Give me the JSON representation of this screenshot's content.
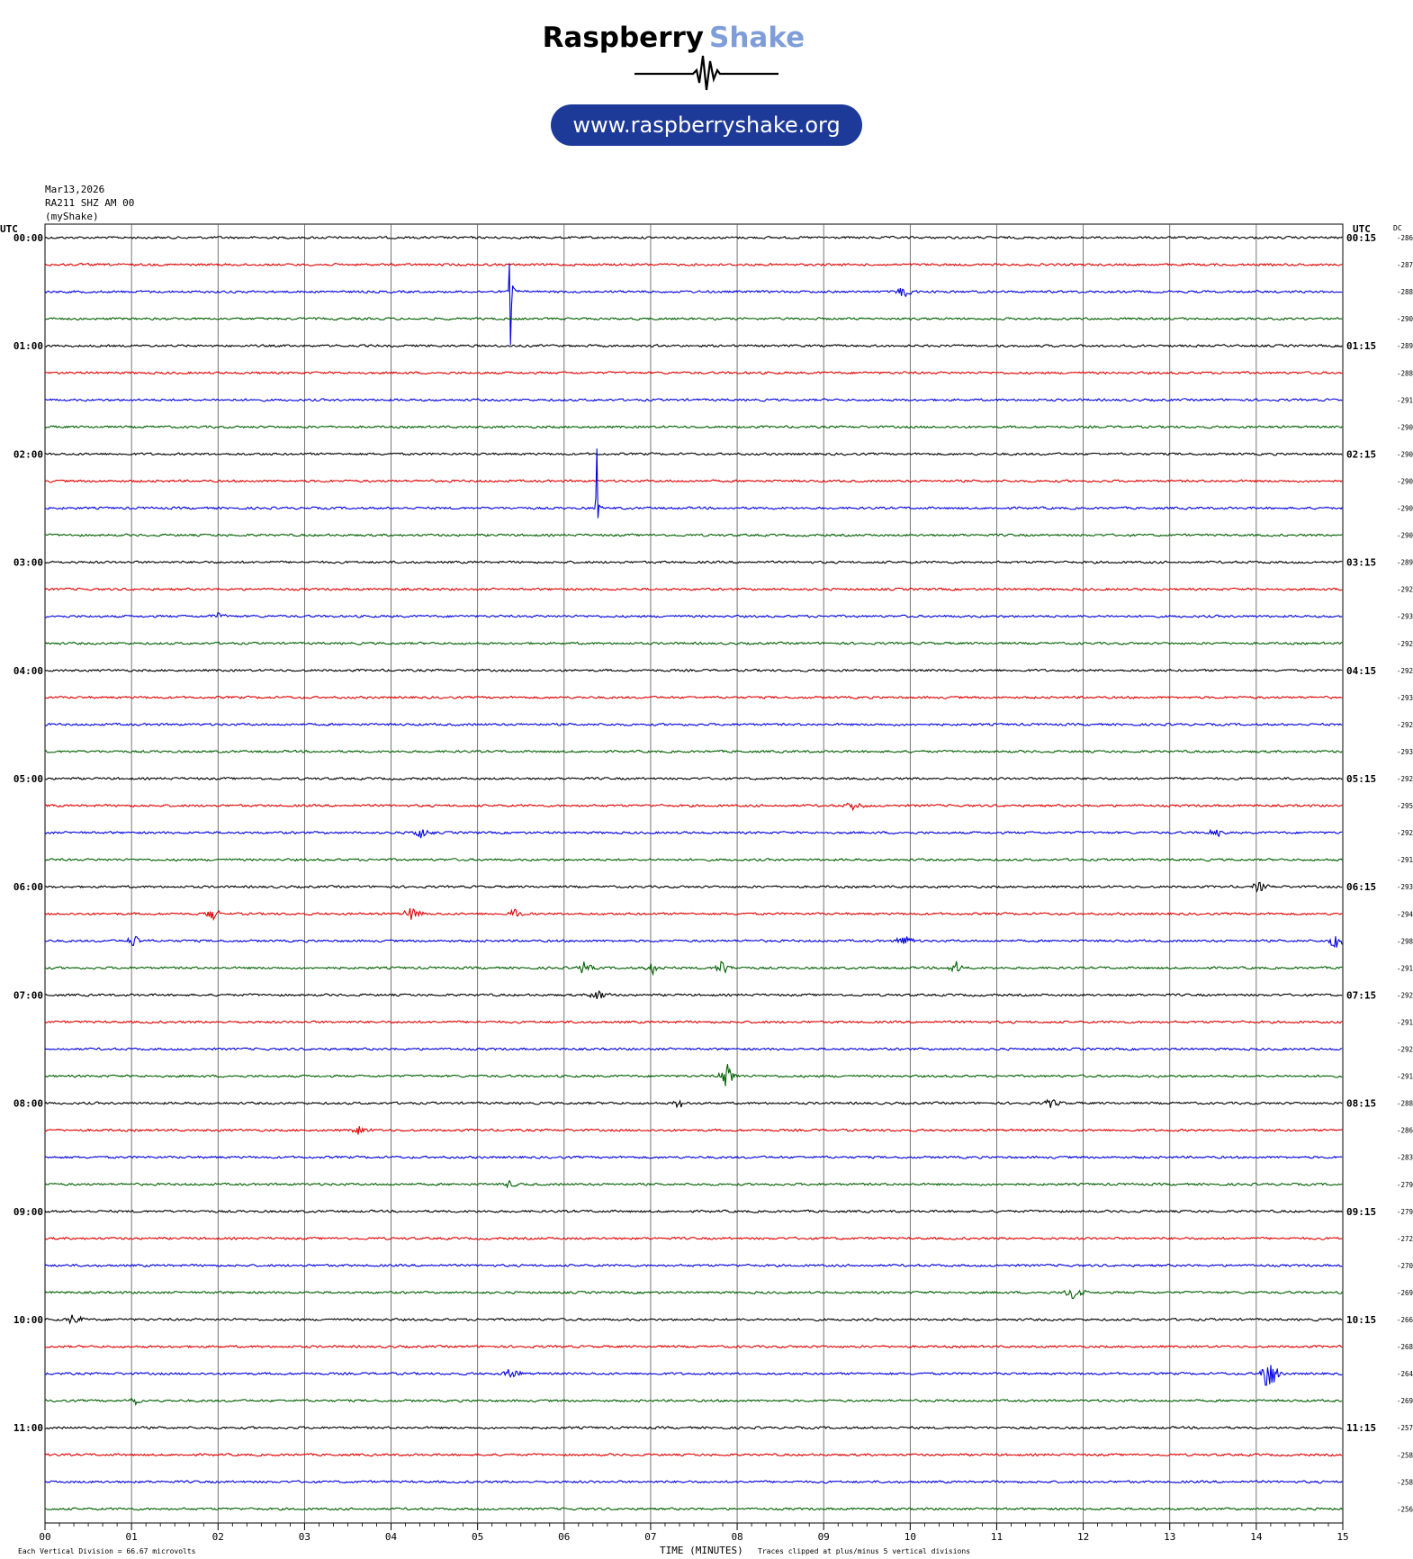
{
  "header": {
    "brand_part1": "Raspberry",
    "brand_part2": "Shake",
    "url": "www.raspberryshake.org",
    "brand_color": "#000000",
    "accent_color": "#7f9ed9",
    "pill_color": "#1e3a99"
  },
  "station": {
    "date": "Mar13,2026",
    "channel": "RA211 SHZ AM 00",
    "source": "(myShake)"
  },
  "labels": {
    "utc_left": "UTC",
    "utc_right": "UTC",
    "dc_header": "DC",
    "x_title": "TIME (MINUTES)",
    "scale_note": "Each Vertical Division =   66.67 microvolts",
    "clip_note": "Traces clipped at plus/minus 5 vertical divisions"
  },
  "chart_data": {
    "type": "line",
    "title": "",
    "xlabel": "TIME (MINUTES)",
    "xlim": [
      0,
      15
    ],
    "x_ticks": [
      "00",
      "01",
      "02",
      "03",
      "04",
      "05",
      "06",
      "07",
      "08",
      "09",
      "10",
      "11",
      "12",
      "13",
      "14",
      "15"
    ],
    "grid": true,
    "trace_colors": [
      "#000000",
      "#e00000",
      "#0000e0",
      "#006000"
    ],
    "left_hour_labels": [
      "00:00",
      "01:00",
      "02:00",
      "03:00",
      "04:00",
      "05:00",
      "06:00",
      "07:00",
      "08:00",
      "09:00",
      "10:00",
      "11:00"
    ],
    "right_hour_labels": [
      "00:15",
      "01:15",
      "02:15",
      "03:15",
      "04:15",
      "05:15",
      "06:15",
      "07:15",
      "08:15",
      "09:15",
      "10:15",
      "11:15"
    ],
    "dc_offsets": [
      "-286",
      "-287",
      "-288",
      "-290",
      "-289",
      "-288",
      "-291",
      "-290",
      "-290",
      "-290",
      "-290",
      "-290",
      "-289",
      "-292",
      "-293",
      "-292",
      "-292",
      "-293",
      "-292",
      "-293",
      "-292",
      "-295",
      "-292",
      "-291",
      "-293",
      "-294",
      "-298",
      "-291",
      "-292",
      "-291",
      "-292",
      "-291",
      "-288",
      "-286",
      "-283",
      "-279",
      "-279",
      "-272",
      "-270",
      "-269",
      "-266",
      "-268",
      "-264",
      "-269",
      "-257",
      "-258",
      "-258",
      "-256"
    ],
    "events": [
      {
        "row": 2,
        "minute": 5.38,
        "amp": 30,
        "kind": "spike"
      },
      {
        "row": 2,
        "minute": 9.9,
        "amp": 8,
        "kind": "burst"
      },
      {
        "row": 10,
        "minute": 6.38,
        "amp": 18,
        "kind": "spike"
      },
      {
        "row": 14,
        "minute": 1.95,
        "amp": 4,
        "kind": "burst"
      },
      {
        "row": 22,
        "minute": 4.3,
        "amp": 9,
        "kind": "burst"
      },
      {
        "row": 22,
        "minute": 13.5,
        "amp": 6,
        "kind": "burst"
      },
      {
        "row": 21,
        "minute": 9.3,
        "amp": 6,
        "kind": "burst"
      },
      {
        "row": 24,
        "minute": 14.0,
        "amp": 7,
        "kind": "burst"
      },
      {
        "row": 25,
        "minute": 1.9,
        "amp": 8,
        "kind": "burst"
      },
      {
        "row": 25,
        "minute": 4.2,
        "amp": 9,
        "kind": "burst"
      },
      {
        "row": 25,
        "minute": 5.4,
        "amp": 7,
        "kind": "burst"
      },
      {
        "row": 26,
        "minute": 1.0,
        "amp": 8,
        "kind": "burst"
      },
      {
        "row": 26,
        "minute": 9.9,
        "amp": 9,
        "kind": "burst"
      },
      {
        "row": 26,
        "minute": 14.9,
        "amp": 12,
        "kind": "burst"
      },
      {
        "row": 27,
        "minute": 6.2,
        "amp": 8,
        "kind": "burst"
      },
      {
        "row": 27,
        "minute": 7.0,
        "amp": 8,
        "kind": "burst"
      },
      {
        "row": 27,
        "minute": 7.8,
        "amp": 9,
        "kind": "burst"
      },
      {
        "row": 27,
        "minute": 10.5,
        "amp": 8,
        "kind": "burst"
      },
      {
        "row": 28,
        "minute": 6.35,
        "amp": 9,
        "kind": "burst"
      },
      {
        "row": 31,
        "minute": 7.85,
        "amp": 15,
        "kind": "burst"
      },
      {
        "row": 32,
        "minute": 7.3,
        "amp": 6,
        "kind": "burst"
      },
      {
        "row": 32,
        "minute": 11.6,
        "amp": 6,
        "kind": "burst"
      },
      {
        "row": 33,
        "minute": 3.6,
        "amp": 6,
        "kind": "burst"
      },
      {
        "row": 35,
        "minute": 5.35,
        "amp": 6,
        "kind": "burst"
      },
      {
        "row": 39,
        "minute": 11.85,
        "amp": 12,
        "kind": "burst"
      },
      {
        "row": 40,
        "minute": 0.3,
        "amp": 7,
        "kind": "burst"
      },
      {
        "row": 42,
        "minute": 5.35,
        "amp": 9,
        "kind": "burst"
      },
      {
        "row": 42,
        "minute": 14.1,
        "amp": 28,
        "kind": "burst"
      },
      {
        "row": 43,
        "minute": 1.0,
        "amp": 6,
        "kind": "burst"
      }
    ]
  }
}
